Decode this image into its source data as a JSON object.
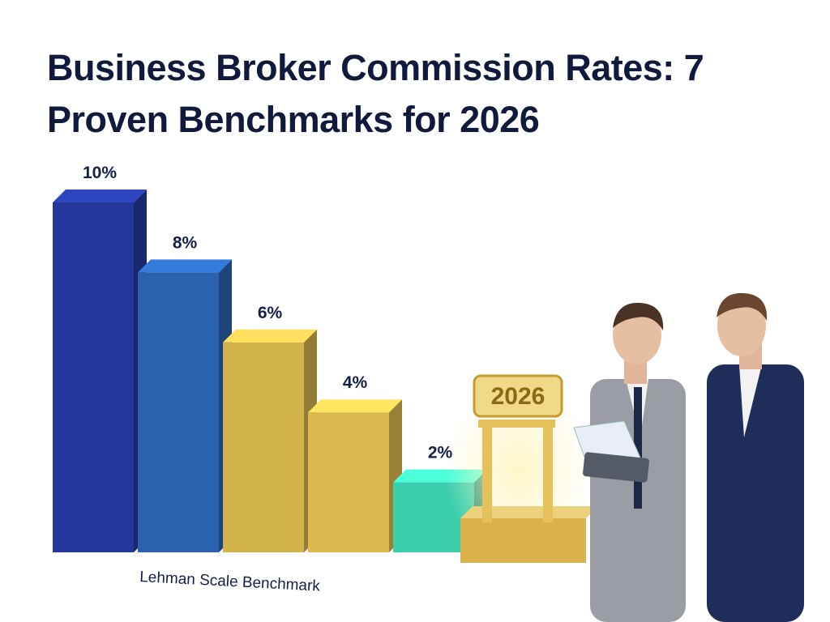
{
  "chart_data": {
    "type": "bar",
    "title": "Business Broker Commission Rates: 7 Proven Benchmarks for 2026",
    "categories": [
      null,
      null,
      null,
      null,
      null
    ],
    "values": [
      10,
      8,
      6,
      4,
      2
    ],
    "value_labels": [
      "10%",
      "8%",
      "6%",
      "4%",
      "2%"
    ],
    "colors": [
      "#23389a",
      "#2a62b0",
      "#d2b24a",
      "#dcb84e",
      "#3ccfae"
    ],
    "annotations": [
      "Lehman Scale Benchmark",
      "2026"
    ]
  }
}
